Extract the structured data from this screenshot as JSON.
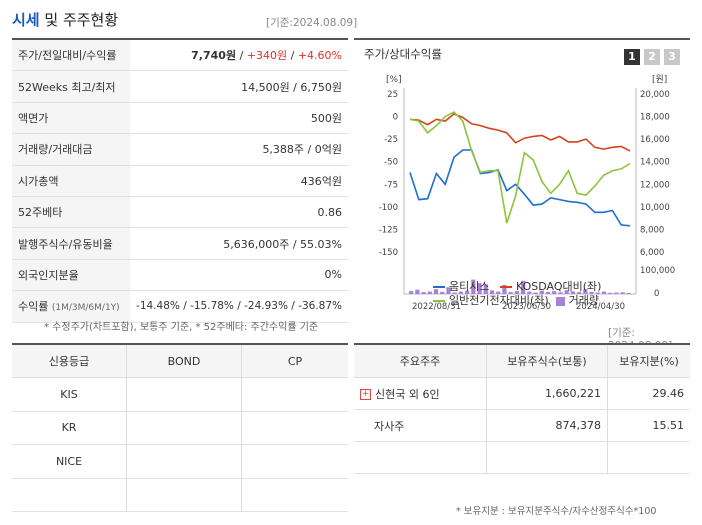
{
  "header": {
    "title_blue": "시세",
    "title_rest": " 및 주주현황",
    "date_ref": "[기준:2024.08.09]"
  },
  "main_table": {
    "rows": [
      {
        "label": "주가/전일대비/수익률",
        "value_main": "7,740원",
        "value_change": "+340원",
        "value_pct": "+4.60%"
      },
      {
        "label": "52Weeks 최고/최저",
        "value": "14,500원 / 6,750원"
      },
      {
        "label": "액면가",
        "value": "500원"
      },
      {
        "label": "거래량/거래대금",
        "value": "5,388주 / 0억원"
      },
      {
        "label": "시가총액",
        "value": "436억원"
      },
      {
        "label": "52주베타",
        "value": "0.86"
      },
      {
        "label": "발행주식수/유동비율",
        "value": "5,636,000주 / 55.03%"
      },
      {
        "label": "외국인지분율",
        "value": "0%"
      },
      {
        "label": "수익률",
        "label_sub": "(1M/3M/6M/1Y)",
        "r1": "-14.48%",
        "r2": "-15.78%",
        "r3": "-24.93%",
        "r4": "-36.87%"
      }
    ],
    "note": "* 수정주가(차트포함), 보통주 기준, * 52주베타: 주간수익률 기준"
  },
  "chart_panel": {
    "title": "주가/상대수익률",
    "pages": [
      "1",
      "2",
      "3"
    ],
    "left_unit": "[%]",
    "right_unit": "[원]",
    "date_ref": "[기준: 2024.08.09]"
  },
  "chart_data": {
    "type": "line",
    "x_labels": [
      "2022/08/31",
      "2023/06/30",
      "2024/04/30"
    ],
    "left_ticks": [
      "25",
      "0",
      "-25",
      "-50",
      "-75",
      "-100",
      "-125",
      "-150"
    ],
    "right_ticks": [
      "20,000",
      "18,000",
      "16,000",
      "14,000",
      "12,000",
      "10,000",
      "8,000",
      "6,000"
    ],
    "vol_ticks": [
      "100,000",
      "0"
    ],
    "left_range": [
      -150,
      25
    ],
    "vol_range": [
      0,
      100000
    ],
    "series": [
      {
        "name": "옴티시스",
        "color": "#1e6fd0",
        "values": [
          -62,
          -92,
          -91,
          -63,
          -75,
          -45,
          -37,
          -37,
          -63,
          -62,
          -59,
          -82,
          -75,
          -86,
          -98,
          -97,
          -90,
          -92,
          -94,
          -95,
          -97,
          -106,
          -106,
          -104,
          -120,
          -121
        ]
      },
      {
        "name": "KOSDAQ대비(좌)",
        "color": "#d6421c",
        "values": [
          -3,
          -4,
          -9,
          -3,
          -5,
          3,
          -1,
          -8,
          -10,
          -13,
          -15,
          -18,
          -29,
          -24,
          -22,
          -21,
          -26,
          -22,
          -28,
          -28,
          -25,
          -34,
          -36,
          -34,
          -33,
          -38
        ]
      },
      {
        "name": "일반전기전자대비(좌)",
        "color": "#8cc43c",
        "values": [
          -3,
          -5,
          -18,
          -10,
          0,
          5,
          -5,
          -38,
          -62,
          -60,
          -60,
          -118,
          -88,
          -40,
          -48,
          -72,
          -85,
          -75,
          -60,
          -85,
          -87,
          -77,
          -65,
          -60,
          -58,
          -52
        ]
      }
    ],
    "volume": {
      "name": "거래량",
      "color": "#a982d8",
      "values": [
        12000,
        18000,
        8000,
        10000,
        20000,
        9000,
        28000,
        6000,
        10000,
        14000,
        60000,
        45000,
        40000,
        15000,
        10000,
        38000,
        8000,
        12000,
        55000,
        10000,
        6000,
        14000,
        9000,
        12000,
        7000,
        16000,
        11000,
        8000,
        20000,
        9000,
        6000,
        10000,
        5000,
        6000,
        7000,
        4000
      ]
    }
  },
  "credit": {
    "headers": [
      "신용등급",
      "BOND",
      "CP"
    ],
    "rows": [
      [
        "KIS",
        "",
        ""
      ],
      [
        "KR",
        "",
        ""
      ],
      [
        "NICE",
        "",
        ""
      ],
      [
        "",
        "",
        ""
      ]
    ]
  },
  "holders": {
    "headers": [
      "주요주주",
      "보유주식수(보통)",
      "보유지분(%)"
    ],
    "rows": [
      {
        "name": "신현국 외 6인",
        "shares": "1,660,221",
        "pct": "29.46"
      },
      {
        "name": "자사주",
        "shares": "874,378",
        "pct": "15.51"
      },
      {
        "name": "",
        "shares": "",
        "pct": ""
      }
    ],
    "note": "* 보유지분 : 보유지분주식수/자수산정주식수*100"
  }
}
